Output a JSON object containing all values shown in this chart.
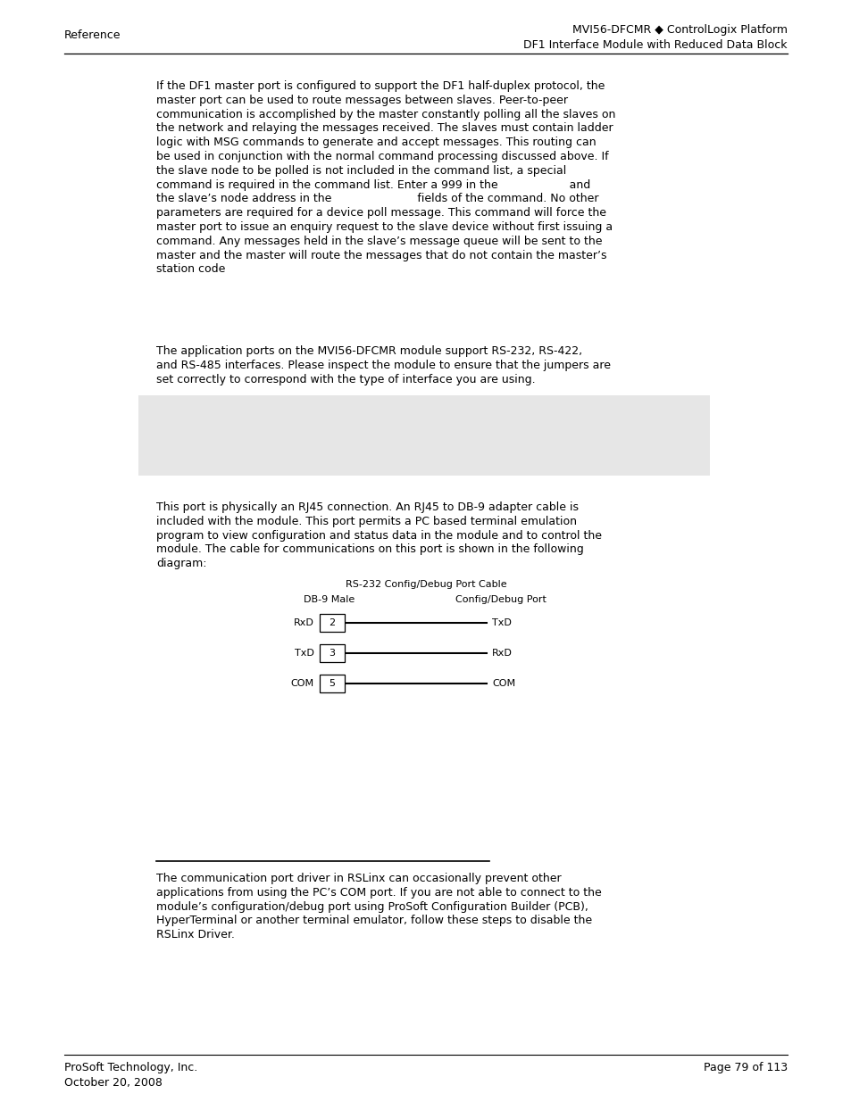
{
  "bg_color": "#ffffff",
  "header_left": "Reference",
  "header_right_line1": "MVI56-DFCMR ◆ ControlLogix Platform",
  "header_right_line2": "DF1 Interface Module with Reduced Data Block",
  "footer_left_line1": "ProSoft Technology, Inc.",
  "footer_left_line2": "October 20, 2008",
  "footer_right": "Page 79 of 113",
  "gray_box_color": "#e6e6e6",
  "para1_lines": [
    "If the DF1 master port is configured to support the DF1 half-duplex protocol, the",
    "master port can be used to route messages between slaves. Peer-to-peer",
    "communication is accomplished by the master constantly polling all the slaves on",
    "the network and relaying the messages received. The slaves must contain ladder",
    "logic with MSG commands to generate and accept messages. This routing can",
    "be used in conjunction with the normal command processing discussed above. If",
    "the slave node to be polled is not included in the command list, a special",
    "command is required in the command list. Enter a 999 in the                    and",
    "the slave’s node address in the                        fields of the command. No other",
    "parameters are required for a device poll message. This command will force the",
    "master port to issue an enquiry request to the slave device without first issuing a",
    "command. Any messages held in the slave’s message queue will be sent to the",
    "master and the master will route the messages that do not contain the master’s",
    "station code"
  ],
  "para2_lines": [
    "The application ports on the MVI56-DFCMR module support RS-232, RS-422,",
    "and RS-485 interfaces. Please inspect the module to ensure that the jumpers are",
    "set correctly to correspond with the type of interface you are using."
  ],
  "para3_lines": [
    "This port is physically an RJ45 connection. An RJ45 to DB-9 adapter cable is",
    "included with the module. This port permits a PC based terminal emulation",
    "program to view configuration and status data in the module and to control the",
    "module. The cable for communications on this port is shown in the following",
    "diagram:"
  ],
  "diagram_title": "RS-232 Config/Debug Port Cable",
  "db9_label": "DB-9 Male",
  "port_label": "Config/Debug Port",
  "pin_left_labels": [
    "RxD",
    "TxD",
    "COM"
  ],
  "pin_numbers": [
    "2",
    "3",
    "5"
  ],
  "pin_right_labels": [
    "TxD",
    "RxD",
    "COM"
  ],
  "footnote_lines": [
    "The communication port driver in RSLinx can occasionally prevent other",
    "applications from using the PC’s COM port. If you are not able to connect to the",
    "module’s configuration/debug port using ProSoft Configuration Builder (PCB),",
    "HyperTerminal or another terminal emulator, follow these steps to disable the",
    "RSLinx Driver."
  ]
}
